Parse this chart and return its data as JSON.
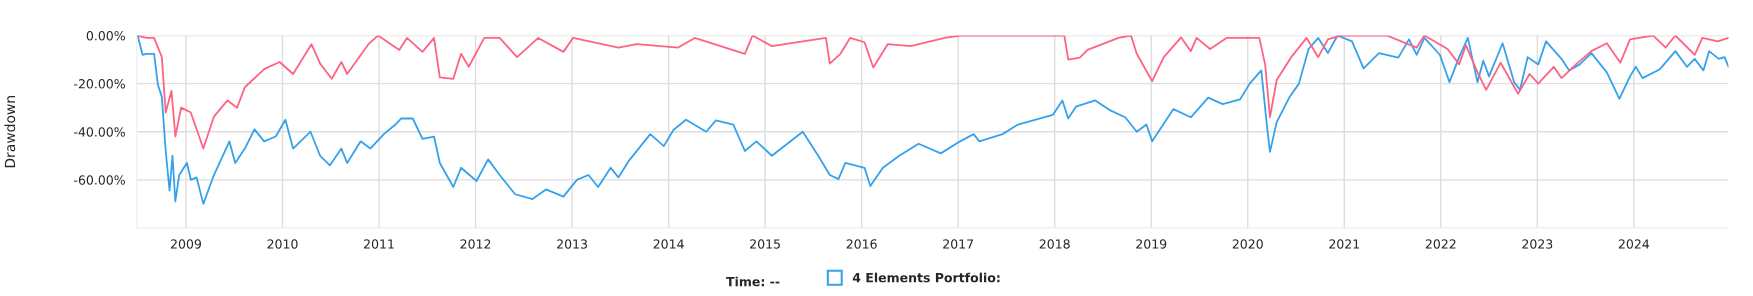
{
  "chart_data": {
    "type": "line",
    "ylabel": "Drawdown",
    "xlim": [
      2008.49,
      2024.98
    ],
    "xticks": [
      2009,
      2010,
      2011,
      2012,
      2013,
      2014,
      2015,
      2016,
      2017,
      2018,
      2019,
      2020,
      2021,
      2022,
      2023,
      2024
    ],
    "ylim": [
      -80,
      0
    ],
    "yticks": [
      {
        "value": 0,
        "label": "0.00%"
      },
      {
        "value": -20,
        "label": "-20.00%"
      },
      {
        "value": -40,
        "label": "-40.00%"
      },
      {
        "value": -60,
        "label": "-60.00%"
      }
    ],
    "grid": true,
    "legend": "bottom",
    "marker": "none",
    "line_style": "solid",
    "annotations": [
      "Time: --"
    ],
    "series": [
      {
        "name": "4 Elements Portfolio:",
        "color": "#36a2eb",
        "x": [
          2008.5,
          2008.55,
          2008.59,
          2008.67,
          2008.71,
          2008.75,
          2008.79,
          2008.83,
          2008.86,
          2008.89,
          2008.93,
          2009.01,
          2009.05,
          2009.11,
          2009.18,
          2009.29,
          2009.45,
          2009.51,
          2009.61,
          2009.71,
          2009.81,
          2009.93,
          2010.03,
          2010.11,
          2010.29,
          2010.39,
          2010.49,
          2010.61,
          2010.67,
          2010.81,
          2010.91,
          2011.05,
          2011.17,
          2011.23,
          2011.35,
          2011.45,
          2011.57,
          2011.63,
          2011.77,
          2011.85,
          2012.01,
          2012.13,
          2012.25,
          2012.41,
          2012.59,
          2012.73,
          2012.91,
          2013.05,
          2013.17,
          2013.27,
          2013.4,
          2013.48,
          2013.59,
          2013.81,
          2013.95,
          2014.05,
          2014.18,
          2014.39,
          2014.49,
          2014.67,
          2014.79,
          2014.91,
          2015.07,
          2015.39,
          2015.55,
          2015.67,
          2015.76,
          2015.83,
          2016.03,
          2016.09,
          2016.22,
          2016.39,
          2016.59,
          2016.82,
          2017.02,
          2017.16,
          2017.22,
          2017.46,
          2017.62,
          2017.98,
          2018.08,
          2018.14,
          2018.22,
          2018.42,
          2018.57,
          2018.73,
          2018.85,
          2018.95,
          2019.01,
          2019.23,
          2019.41,
          2019.59,
          2019.74,
          2019.92,
          2020.02,
          2020.14,
          2020.2,
          2020.23,
          2020.3,
          2020.43,
          2020.53,
          2020.63,
          2020.73,
          2020.83,
          2020.93,
          2021.08,
          2021.2,
          2021.36,
          2021.56,
          2021.67,
          2021.75,
          2021.83,
          2021.99,
          2022.09,
          2022.19,
          2022.28,
          2022.38,
          2022.44,
          2022.5,
          2022.64,
          2022.76,
          2022.82,
          2022.9,
          2023.01,
          2023.09,
          2023.25,
          2023.33,
          2023.44,
          2023.56,
          2023.72,
          2023.85,
          2023.96,
          2024.02,
          2024.09,
          2024.27,
          2024.43,
          2024.55,
          2024.63,
          2024.72,
          2024.78,
          2024.88,
          2024.94,
          2024.98
        ],
        "values": [
          0,
          -8,
          -7.6,
          -7.6,
          -20.6,
          -25.5,
          -48,
          -64.5,
          -50,
          -69,
          -58,
          -53,
          -60,
          -59,
          -70,
          -58,
          -44,
          -53,
          -47,
          -39,
          -44,
          -42,
          -35,
          -47,
          -40,
          -50,
          -54,
          -47,
          -53,
          -44,
          -47,
          -41,
          -37,
          -34.5,
          -34.5,
          -43,
          -42,
          -53,
          -63,
          -55,
          -60.5,
          -51.5,
          -58,
          -66,
          -68,
          -64,
          -67,
          -60,
          -58,
          -63,
          -55,
          -59,
          -52,
          -41,
          -46,
          -39.3,
          -35,
          -40,
          -35.3,
          -37,
          -48,
          -44,
          -50,
          -40,
          -50,
          -58,
          -59.7,
          -53,
          -55,
          -62.6,
          -55,
          -50,
          -45,
          -49,
          -44,
          -41,
          -44,
          -41,
          -37,
          -33,
          -27,
          -34.5,
          -29.6,
          -27,
          -31,
          -34,
          -40,
          -37,
          -44,
          -30.6,
          -34,
          -25.8,
          -28.5,
          -26.6,
          -20,
          -14.5,
          -38,
          -48.4,
          -36,
          -25.8,
          -20,
          -5.6,
          -1,
          -7.3,
          0,
          -2.4,
          -13.7,
          -7.3,
          -9.2,
          -1.6,
          -8,
          -1,
          -8,
          -19.4,
          -9,
          -1,
          -19.4,
          -10.5,
          -17,
          -3.2,
          -19.4,
          -22.6,
          -9,
          -12,
          -2.4,
          -9.7,
          -14.5,
          -12,
          -7.3,
          -15.3,
          -26.3,
          -17,
          -13,
          -17.7,
          -14,
          -6.5,
          -13,
          -9.7,
          -14.5,
          -6.5,
          -9.7,
          -9,
          -13
        ]
      },
      {
        "color": "#ff6384",
        "x": [
          2008.5,
          2008.59,
          2008.67,
          2008.75,
          2008.79,
          2008.85,
          2008.89,
          2008.95,
          2009.05,
          2009.18,
          2009.29,
          2009.43,
          2009.53,
          2009.61,
          2009.81,
          2009.97,
          2010.11,
          2010.3,
          2010.39,
          2010.51,
          2010.61,
          2010.67,
          2010.89,
          2010.99,
          2011.21,
          2011.29,
          2011.45,
          2011.57,
          2011.63,
          2011.77,
          2011.85,
          2011.93,
          2012.09,
          2012.25,
          2012.43,
          2012.65,
          2012.91,
          2013.01,
          2013.48,
          2013.67,
          2014.1,
          2014.27,
          2014.79,
          2014.87,
          2015.07,
          2015.63,
          2015.67,
          2015.78,
          2015.88,
          2016.03,
          2016.12,
          2016.27,
          2016.51,
          2016.86,
          2017.02,
          2018.1,
          2018.14,
          2018.26,
          2018.34,
          2018.66,
          2018.79,
          2018.85,
          2019.01,
          2019.13,
          2019.31,
          2019.41,
          2019.47,
          2019.61,
          2019.78,
          2020.12,
          2020.18,
          2020.23,
          2020.3,
          2020.45,
          2020.61,
          2020.73,
          2020.83,
          2020.96,
          2021.44,
          2021.75,
          2021.83,
          2022.07,
          2022.19,
          2022.26,
          2022.38,
          2022.47,
          2022.62,
          2022.8,
          2022.92,
          2023.01,
          2023.17,
          2023.25,
          2023.4,
          2023.56,
          2023.72,
          2023.86,
          2023.96,
          2024.2,
          2024.33,
          2024.43,
          2024.63,
          2024.71,
          2024.87,
          2024.98
        ],
        "values": [
          0,
          -1,
          -1,
          -9,
          -32,
          -23,
          -42,
          -30,
          -32,
          -47,
          -33.7,
          -27,
          -30,
          -21.5,
          -14,
          -11,
          -16,
          -3.6,
          -11.7,
          -18,
          -11,
          -16,
          -3.6,
          0,
          -6,
          -1,
          -6.8,
          -1,
          -17.4,
          -18,
          -7.6,
          -13,
          -1,
          -1,
          -9,
          -1,
          -6.8,
          -1,
          -5,
          -3.6,
          -5,
          -1,
          -7.6,
          0,
          -4.4,
          -1,
          -11.7,
          -7.6,
          -1,
          -2.8,
          -13.3,
          -3.6,
          -4.4,
          -1,
          0,
          0,
          -10,
          -9.2,
          -6,
          -1,
          0,
          -7.6,
          -19,
          -9,
          -0.8,
          -6.5,
          -1,
          -5.6,
          -1,
          -1,
          -12,
          -34,
          -18.5,
          -9,
          -1,
          -9,
          -1.6,
          0,
          0,
          -5,
          0,
          -5.6,
          -12,
          -4,
          -15.3,
          -22.6,
          -11.3,
          -24.2,
          -16,
          -20,
          -13,
          -17.7,
          -12,
          -6.5,
          -3.2,
          -11.3,
          -1.6,
          0,
          -5,
          0,
          -8,
          -1,
          -2.4,
          -1
        ]
      }
    ]
  }
}
